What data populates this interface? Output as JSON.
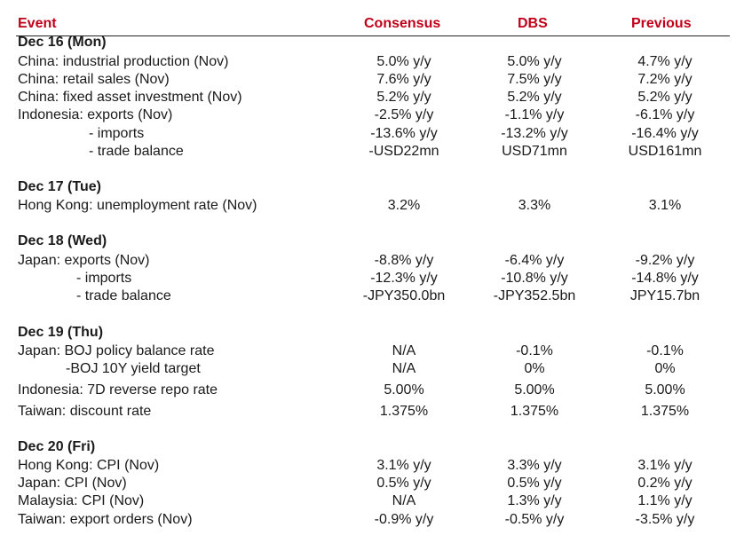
{
  "header": {
    "event": "Event",
    "consensus": "Consensus",
    "dbs": "DBS",
    "previous": "Previous"
  },
  "days": [
    {
      "label": "Dec 16 (Mon)",
      "rows": [
        {
          "event": "China: industrial production (Nov)",
          "consensus": "5.0% y/y",
          "dbs": "5.0% y/y",
          "previous": "4.7% y/y"
        },
        {
          "event": "China: retail sales (Nov)",
          "consensus": "7.6% y/y",
          "dbs": "7.5% y/y",
          "previous": "7.2% y/y"
        },
        {
          "event": "China: fixed asset investment (Nov)",
          "consensus": "5.2% y/y",
          "dbs": "5.2% y/y",
          "previous": "5.2% y/y"
        },
        {
          "event": "Indonesia: exports (Nov)",
          "consensus": "-2.5% y/y",
          "dbs": "-1.1% y/y",
          "previous": "-6.1% y/y"
        },
        {
          "event": "- imports",
          "consensus": "-13.6% y/y",
          "dbs": "-13.2% y/y",
          "previous": "-16.4% y/y"
        },
        {
          "event": "- trade balance",
          "consensus": "-USD22mn",
          "dbs": "USD71mn",
          "previous": "USD161mn"
        }
      ]
    },
    {
      "label": "Dec 17 (Tue)",
      "rows": [
        {
          "event": "Hong Kong: unemployment rate (Nov)",
          "consensus": "3.2%",
          "dbs": "3.3%",
          "previous": "3.1%"
        }
      ]
    },
    {
      "label": "Dec 18 (Wed)",
      "rows": [
        {
          "event": "Japan: exports (Nov)",
          "consensus": "-8.8% y/y",
          "dbs": "-6.4% y/y",
          "previous": "-9.2% y/y"
        },
        {
          "event": "- imports",
          "consensus": "-12.3% y/y",
          "dbs": "-10.8% y/y",
          "previous": "-14.8% y/y"
        },
        {
          "event": "- trade balance",
          "consensus": "-JPY350.0bn",
          "dbs": "-JPY352.5bn",
          "previous": "JPY15.7bn"
        }
      ]
    },
    {
      "label": "Dec 19 (Thu)",
      "rows": [
        {
          "event": "Japan: BOJ policy balance rate",
          "consensus": "N/A",
          "dbs": "-0.1%",
          "previous": "-0.1%"
        },
        {
          "event": "-BOJ 10Y yield target",
          "consensus": "N/A",
          "dbs": "0%",
          "previous": "0%"
        },
        {
          "event": "Indonesia: 7D reverse repo rate",
          "consensus": "5.00%",
          "dbs": "5.00%",
          "previous": "5.00%"
        },
        {
          "event": "Taiwan: discount rate",
          "consensus": "1.375%",
          "dbs": "1.375%",
          "previous": "1.375%"
        }
      ]
    },
    {
      "label": "Dec 20 (Fri)",
      "rows": [
        {
          "event": "Hong Kong: CPI (Nov)",
          "consensus": "3.1% y/y",
          "dbs": "3.3% y/y",
          "previous": "3.1% y/y"
        },
        {
          "event": "Japan: CPI (Nov)",
          "consensus": "0.5% y/y",
          "dbs": "0.5% y/y",
          "previous": "0.2% y/y"
        },
        {
          "event": "Malaysia: CPI (Nov)",
          "consensus": "N/A",
          "dbs": "1.3% y/y",
          "previous": "1.1% y/y"
        },
        {
          "event": "Taiwan: export orders (Nov)",
          "consensus": "-0.9% y/y",
          "dbs": "-0.5% y/y",
          "previous": "-3.5% y/y"
        }
      ]
    }
  ]
}
